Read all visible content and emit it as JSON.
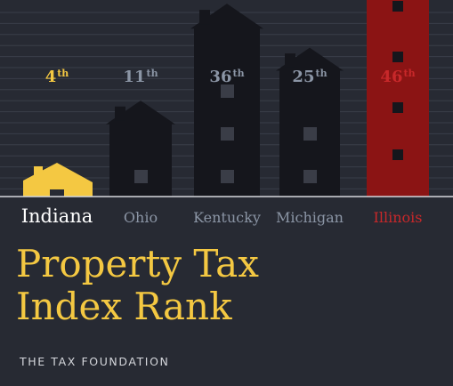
{
  "chart_data": {
    "type": "bar",
    "title": "Property Tax Index Rank",
    "source": "THE TAX FOUNDATION",
    "highlight_category": "Indiana",
    "worst_category": "Illinois",
    "categories": [
      "Indiana",
      "Ohio",
      "Kentucky",
      "Michigan",
      "Illinois"
    ],
    "values": [
      4,
      11,
      36,
      25,
      46
    ],
    "rank_suffix": "th",
    "colors": {
      "background": "#272a33",
      "house": "#15161c",
      "highlight": "#f4c842",
      "worst": "#8b1414",
      "label": "#8b95a5",
      "worst_label": "#c8282a",
      "selected_label": "#ffffff",
      "title": "#f4c842",
      "stripe": "#3a3e49"
    }
  }
}
